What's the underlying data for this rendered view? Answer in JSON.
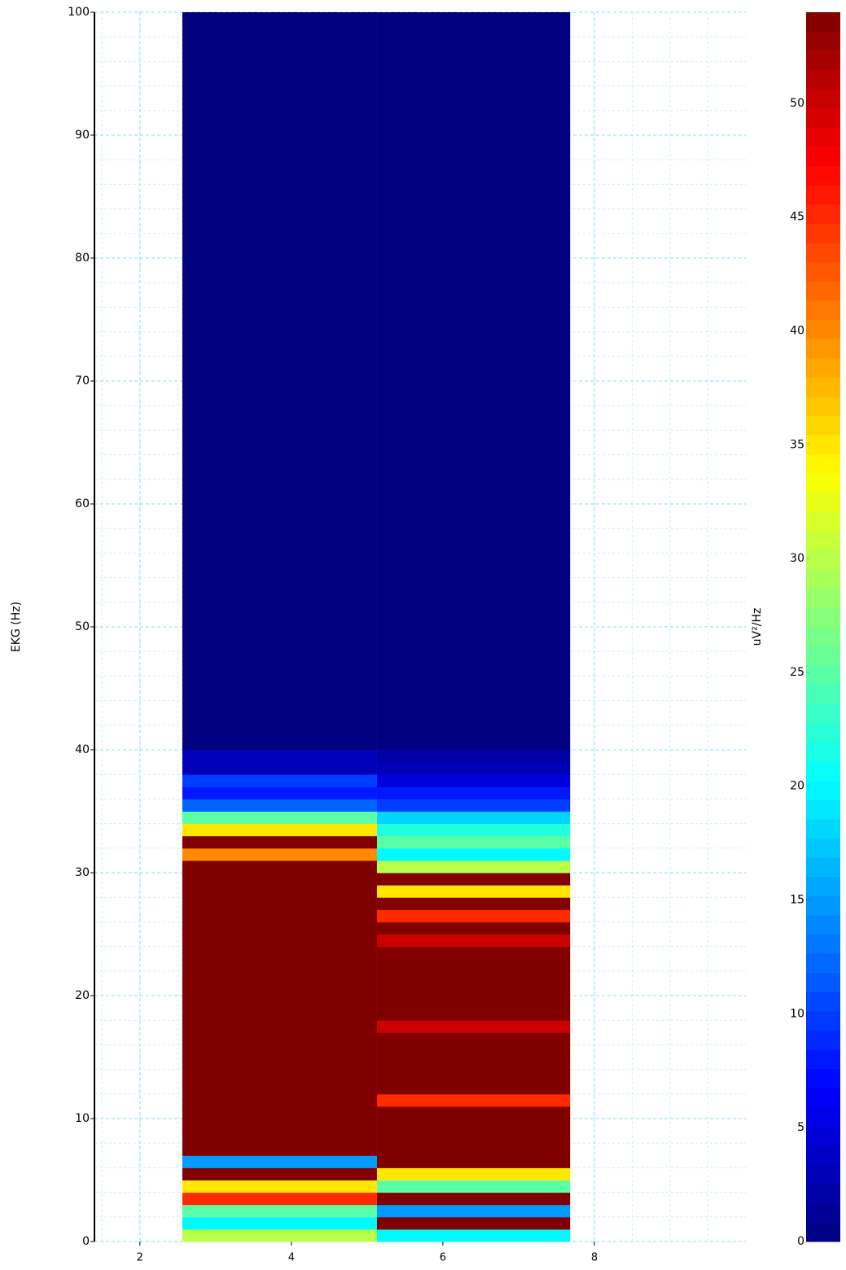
{
  "chart_data": {
    "type": "heatmap",
    "ylabel": "EKG (Hz)",
    "colorbar_label": "uV²/Hz",
    "colormap": "jet",
    "grid": true,
    "xlim": [
      1.4,
      10
    ],
    "xticks": [
      2,
      4,
      6,
      8
    ],
    "ylim": [
      0,
      100
    ],
    "yticks": [
      0,
      10,
      20,
      30,
      40,
      50,
      60,
      70,
      80,
      90,
      100
    ],
    "clim": [
      0,
      54
    ],
    "cticks": [
      0,
      5,
      10,
      15,
      20,
      25,
      30,
      35,
      40,
      45,
      50
    ],
    "x_edges": [
      2.56,
      5.13,
      7.68
    ],
    "y_edges": [
      0,
      1,
      2,
      3,
      4,
      5,
      6,
      7,
      8,
      9,
      10,
      11,
      12,
      13,
      14,
      15,
      16,
      17,
      18,
      19,
      20,
      21,
      22,
      23,
      24,
      25,
      26,
      27,
      28,
      29,
      30,
      31,
      32,
      33,
      34,
      35,
      36,
      37,
      38,
      39,
      40,
      100
    ],
    "values": [
      [
        30,
        20,
        25,
        45,
        35,
        54,
        15,
        54,
        54,
        54,
        54,
        54,
        54,
        54,
        54,
        54,
        54,
        54,
        54,
        54,
        54,
        54,
        54,
        54,
        54,
        54,
        54,
        54,
        54,
        54,
        54,
        40,
        54,
        35,
        25,
        12,
        8,
        10,
        3,
        3,
        0
      ],
      [
        20,
        54,
        15,
        54,
        25,
        35,
        54,
        54,
        54,
        54,
        54,
        45,
        54,
        54,
        54,
        54,
        54,
        50,
        54,
        54,
        54,
        54,
        54,
        54,
        50,
        54,
        45,
        54,
        35,
        54,
        30,
        20,
        25,
        22,
        18,
        10,
        8,
        5,
        3,
        2,
        0
      ]
    ]
  }
}
